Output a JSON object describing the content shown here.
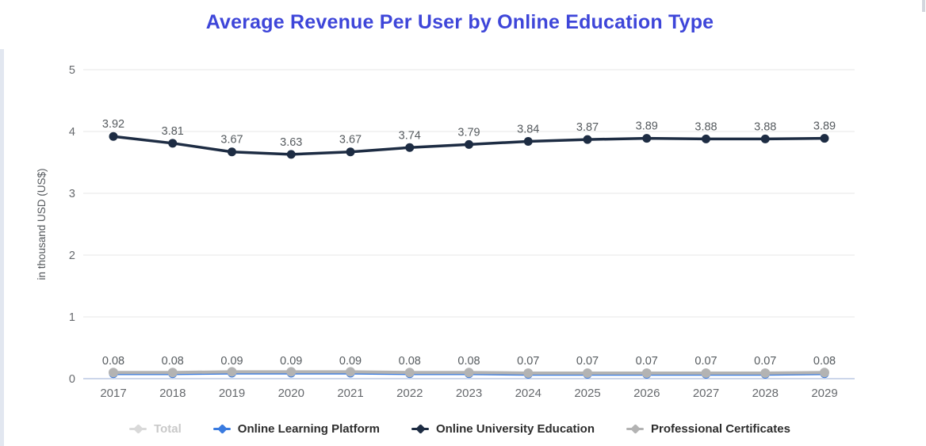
{
  "title": {
    "text": "Average Revenue Per User by Online Education Type"
  },
  "colors": {
    "title": "#3e46d9",
    "grid_line": "#e7e7e7",
    "zero_line": "#ccd6ea",
    "axis_tick_text": "#66696d",
    "data_label_text": "#565b5f",
    "axis_title_text": "#54585c",
    "legend_text": "#2d2d2d",
    "legend_disabled_text": "#c9c9c9",
    "legend_disabled_marker": "#d9d9d9",
    "page_edge_strip": "#e2e7f0"
  },
  "y_axis": {
    "title": "in thousand USD (US$)",
    "ticks": [
      0,
      1,
      2,
      3,
      4,
      5
    ]
  },
  "x_axis": {
    "categories": [
      "2017",
      "2018",
      "2019",
      "2020",
      "2021",
      "2022",
      "2023",
      "2024",
      "2025",
      "2026",
      "2027",
      "2028",
      "2029"
    ]
  },
  "legend": {
    "items": [
      {
        "label": "Total",
        "color": "#d9d9d9",
        "enabled": false
      },
      {
        "label": "Online Learning Platform",
        "color": "#3a7be0",
        "enabled": true
      },
      {
        "label": "Online University Education",
        "color": "#1d2c43",
        "enabled": true
      },
      {
        "label": "Professional Certificates",
        "color": "#b3b3b3",
        "enabled": true
      }
    ]
  },
  "chart_data": {
    "type": "line",
    "title": "Average Revenue Per User by Online Education Type",
    "xlabel": "",
    "ylabel": "in thousand USD (US$)",
    "ylim": [
      0,
      5
    ],
    "grid": true,
    "legend_position": "bottom",
    "categories": [
      "2017",
      "2018",
      "2019",
      "2020",
      "2021",
      "2022",
      "2023",
      "2024",
      "2025",
      "2026",
      "2027",
      "2028",
      "2029"
    ],
    "series": [
      {
        "name": "Total",
        "color": "#d9d9d9",
        "visible": false,
        "values": [],
        "note": "toggled off in legend; no data rendered"
      },
      {
        "name": "Online Learning Platform",
        "color": "#3a7be0",
        "visible": true,
        "labels_visible": true,
        "marker_radius": 5.5,
        "line_width": 3.5,
        "values": [
          0.08,
          0.08,
          0.09,
          0.09,
          0.09,
          0.08,
          0.08,
          0.07,
          0.07,
          0.07,
          0.07,
          0.07,
          0.08
        ]
      },
      {
        "name": "Online University Education",
        "color": "#1d2c43",
        "visible": true,
        "labels_visible": true,
        "marker_radius": 5.5,
        "line_width": 3.5,
        "values": [
          3.92,
          3.81,
          3.67,
          3.63,
          3.67,
          3.74,
          3.79,
          3.84,
          3.87,
          3.89,
          3.88,
          3.88,
          3.89
        ]
      },
      {
        "name": "Professional Certificates",
        "color": "#b3b3b3",
        "visible": true,
        "labels_visible": false,
        "estimated": true,
        "marker_radius": 6,
        "line_width": 4,
        "values": [
          0.1,
          0.1,
          0.11,
          0.11,
          0.11,
          0.1,
          0.1,
          0.09,
          0.09,
          0.09,
          0.09,
          0.09,
          0.1
        ]
      }
    ]
  }
}
